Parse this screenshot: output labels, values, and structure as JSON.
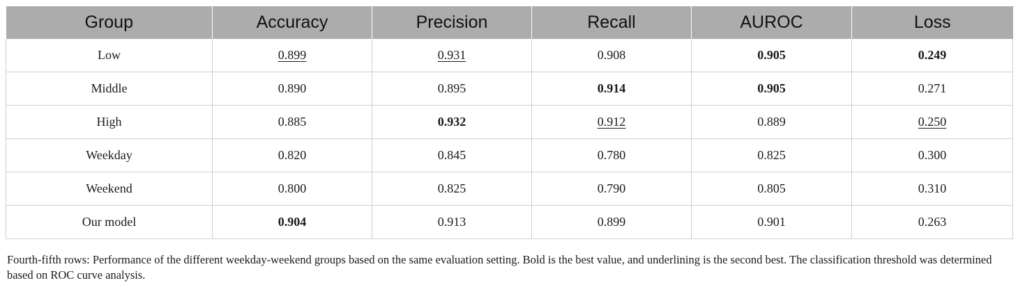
{
  "table": {
    "headers": [
      "Group",
      "Accuracy",
      "Precision",
      "Recall",
      "AUROC",
      "Loss"
    ],
    "rows": [
      {
        "group": "Low",
        "cells": [
          {
            "value": "0.899",
            "style": "second"
          },
          {
            "value": "0.931",
            "style": "second"
          },
          {
            "value": "0.908",
            "style": "normal"
          },
          {
            "value": "0.905",
            "style": "best"
          },
          {
            "value": "0.249",
            "style": "best"
          }
        ]
      },
      {
        "group": "Middle",
        "cells": [
          {
            "value": "0.890",
            "style": "normal"
          },
          {
            "value": "0.895",
            "style": "normal"
          },
          {
            "value": "0.914",
            "style": "best"
          },
          {
            "value": "0.905",
            "style": "best"
          },
          {
            "value": "0.271",
            "style": "normal"
          }
        ]
      },
      {
        "group": "High",
        "cells": [
          {
            "value": "0.885",
            "style": "normal"
          },
          {
            "value": "0.932",
            "style": "best"
          },
          {
            "value": "0.912",
            "style": "second"
          },
          {
            "value": "0.889",
            "style": "normal"
          },
          {
            "value": "0.250",
            "style": "second"
          }
        ]
      },
      {
        "group": "Weekday",
        "cells": [
          {
            "value": "0.820",
            "style": "normal"
          },
          {
            "value": "0.845",
            "style": "normal"
          },
          {
            "value": "0.780",
            "style": "normal"
          },
          {
            "value": "0.825",
            "style": "normal"
          },
          {
            "value": "0.300",
            "style": "normal"
          }
        ]
      },
      {
        "group": "Weekend",
        "cells": [
          {
            "value": "0.800",
            "style": "normal"
          },
          {
            "value": "0.825",
            "style": "normal"
          },
          {
            "value": "0.790",
            "style": "normal"
          },
          {
            "value": "0.805",
            "style": "normal"
          },
          {
            "value": "0.310",
            "style": "normal"
          }
        ]
      },
      {
        "group": "Our model",
        "cells": [
          {
            "value": "0.904",
            "style": "best"
          },
          {
            "value": "0.913",
            "style": "normal"
          },
          {
            "value": "0.899",
            "style": "normal"
          },
          {
            "value": "0.901",
            "style": "normal"
          },
          {
            "value": "0.263",
            "style": "normal"
          }
        ]
      }
    ]
  },
  "caption": "Fourth-fifth rows: Performance of the different weekday-weekend groups based on the same evaluation setting. Bold is the best value, and underlining is the second best. The classification threshold was determined based on ROC curve analysis.",
  "colors": {
    "header_bg": "#acacac",
    "grid": "#cfcfcf"
  }
}
